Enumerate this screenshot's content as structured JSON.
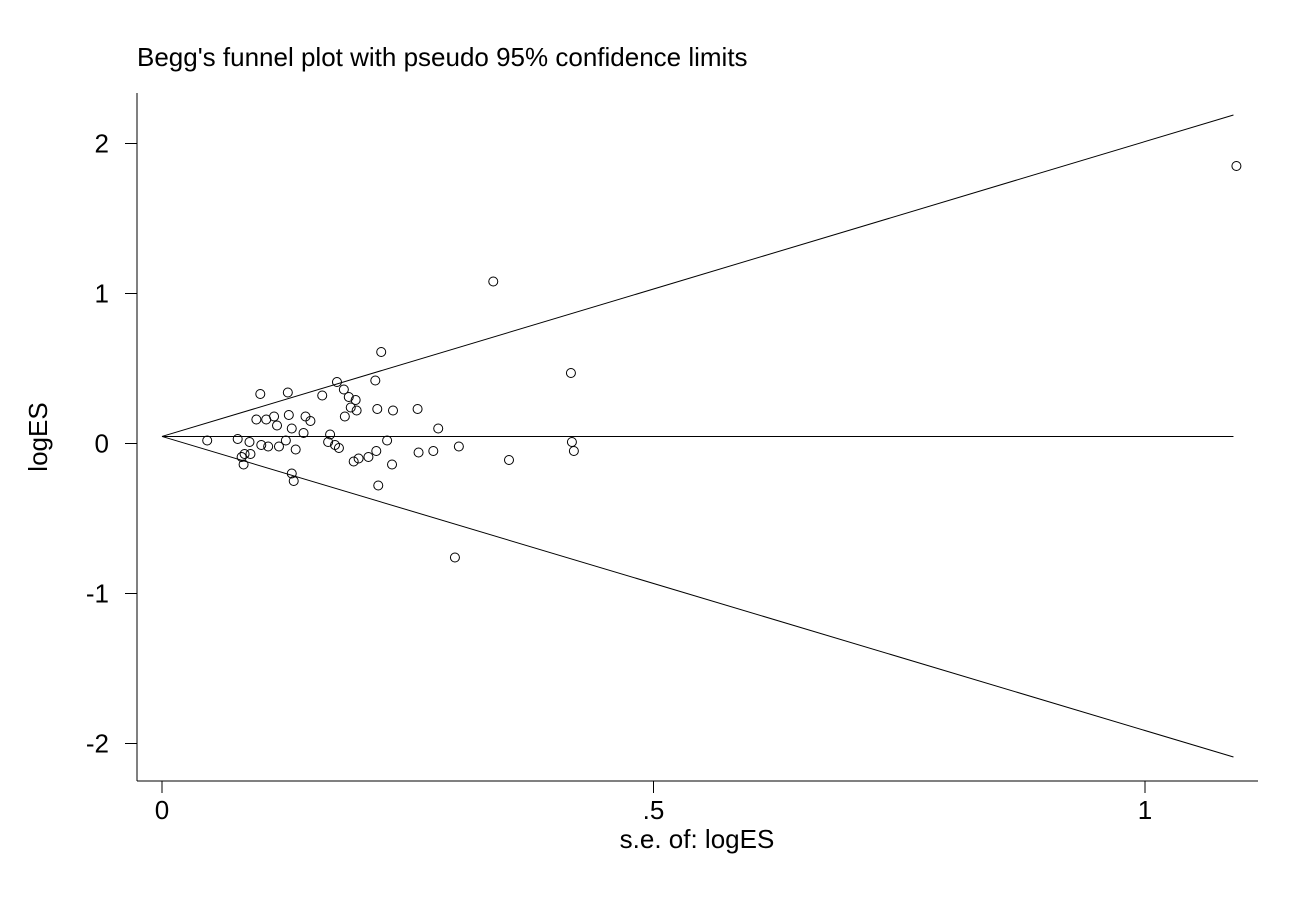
{
  "chart_data": {
    "type": "scatter",
    "title": "Begg's funnel plot with pseudo 95% confidence limits",
    "xlabel": "s.e. of: logES",
    "ylabel": "logES",
    "xlim": [
      -0.025,
      1.115
    ],
    "ylim": [
      -2.25,
      2.35
    ],
    "x_ticks": [
      0,
      0.5,
      1
    ],
    "x_tick_labels": [
      "0",
      ".5",
      "1"
    ],
    "y_ticks": [
      -2,
      -1,
      0,
      1,
      2
    ],
    "y_tick_labels": [
      "-2",
      "-1",
      "0",
      "1",
      "2"
    ],
    "pooled_estimate": 0.047,
    "confidence_limits": {
      "se_range": [
        0,
        1.09
      ],
      "upper_at_max": 2.19,
      "lower_at_max": -2.09
    },
    "grid": false,
    "legend": "none",
    "points": [
      {
        "x": 0.046,
        "y": 0.02
      },
      {
        "x": 0.077,
        "y": 0.03
      },
      {
        "x": 0.081,
        "y": -0.09
      },
      {
        "x": 0.083,
        "y": -0.14
      },
      {
        "x": 0.084,
        "y": -0.07
      },
      {
        "x": 0.089,
        "y": 0.01
      },
      {
        "x": 0.09,
        "y": -0.07
      },
      {
        "x": 0.096,
        "y": 0.16
      },
      {
        "x": 0.1,
        "y": 0.33
      },
      {
        "x": 0.101,
        "y": -0.01
      },
      {
        "x": 0.106,
        "y": 0.16
      },
      {
        "x": 0.108,
        "y": -0.02
      },
      {
        "x": 0.114,
        "y": 0.18
      },
      {
        "x": 0.117,
        "y": 0.12
      },
      {
        "x": 0.119,
        "y": -0.02
      },
      {
        "x": 0.126,
        "y": 0.02
      },
      {
        "x": 0.128,
        "y": 0.34
      },
      {
        "x": 0.129,
        "y": 0.19
      },
      {
        "x": 0.132,
        "y": 0.1
      },
      {
        "x": 0.132,
        "y": -0.2
      },
      {
        "x": 0.134,
        "y": -0.25
      },
      {
        "x": 0.136,
        "y": -0.04
      },
      {
        "x": 0.144,
        "y": 0.07
      },
      {
        "x": 0.146,
        "y": 0.18
      },
      {
        "x": 0.151,
        "y": 0.15
      },
      {
        "x": 0.163,
        "y": 0.32
      },
      {
        "x": 0.169,
        "y": 0.01
      },
      {
        "x": 0.171,
        "y": 0.06
      },
      {
        "x": 0.176,
        "y": -0.01
      },
      {
        "x": 0.178,
        "y": 0.41
      },
      {
        "x": 0.18,
        "y": -0.03
      },
      {
        "x": 0.185,
        "y": 0.36
      },
      {
        "x": 0.186,
        "y": 0.18
      },
      {
        "x": 0.19,
        "y": 0.31
      },
      {
        "x": 0.192,
        "y": 0.24
      },
      {
        "x": 0.195,
        "y": -0.12
      },
      {
        "x": 0.197,
        "y": 0.29
      },
      {
        "x": 0.198,
        "y": 0.22
      },
      {
        "x": 0.2,
        "y": -0.1
      },
      {
        "x": 0.21,
        "y": -0.09
      },
      {
        "x": 0.217,
        "y": 0.42
      },
      {
        "x": 0.218,
        "y": -0.05
      },
      {
        "x": 0.219,
        "y": 0.23
      },
      {
        "x": 0.22,
        "y": -0.28
      },
      {
        "x": 0.223,
        "y": 0.61
      },
      {
        "x": 0.229,
        "y": 0.02
      },
      {
        "x": 0.234,
        "y": -0.14
      },
      {
        "x": 0.235,
        "y": 0.22
      },
      {
        "x": 0.26,
        "y": 0.23
      },
      {
        "x": 0.261,
        "y": -0.06
      },
      {
        "x": 0.276,
        "y": -0.05
      },
      {
        "x": 0.281,
        "y": 0.1
      },
      {
        "x": 0.298,
        "y": -0.76
      },
      {
        "x": 0.302,
        "y": -0.02
      },
      {
        "x": 0.337,
        "y": 1.08
      },
      {
        "x": 0.353,
        "y": -0.11
      },
      {
        "x": 0.416,
        "y": 0.47
      },
      {
        "x": 0.417,
        "y": 0.01
      },
      {
        "x": 0.419,
        "y": -0.05
      },
      {
        "x": 1.093,
        "y": 1.85
      }
    ]
  }
}
